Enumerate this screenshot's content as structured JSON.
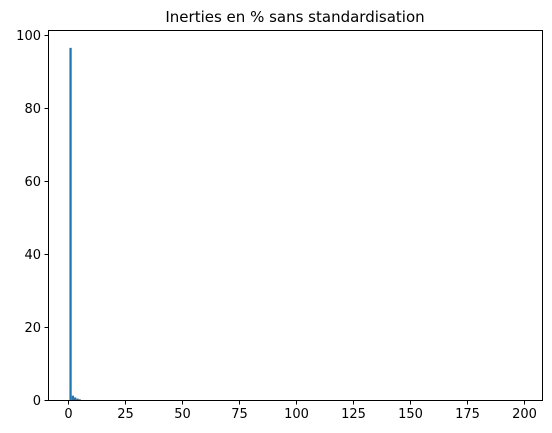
{
  "chart_data": {
    "type": "bar",
    "title": "Inerties en % sans standardisation",
    "xlabel": "",
    "ylabel": "",
    "x": [
      1,
      2,
      3,
      4,
      5
    ],
    "values": [
      96.6,
      1.2,
      0.7,
      0.4,
      0.2
    ],
    "bar_width": 1,
    "bar_color": "#1f77b4",
    "xlim": [
      -8.9,
      207.9
    ],
    "ylim": [
      0,
      101.5
    ],
    "xticks": [
      0,
      25,
      50,
      75,
      100,
      125,
      150,
      175,
      200
    ],
    "xtick_labels": [
      "0",
      "25",
      "50",
      "75",
      "100",
      "125",
      "150",
      "175",
      "200"
    ],
    "yticks": [
      0,
      20,
      40,
      60,
      80,
      100
    ],
    "ytick_labels": [
      "0",
      "20",
      "40",
      "60",
      "80",
      "100"
    ],
    "grid": false,
    "legend": "none"
  }
}
